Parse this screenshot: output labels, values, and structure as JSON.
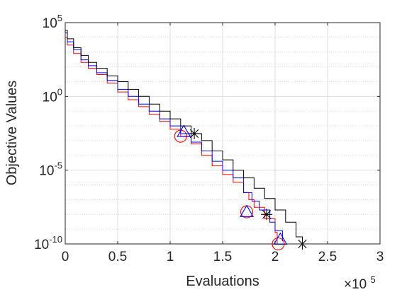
{
  "chart_data": {
    "type": "line",
    "title": "",
    "xlabel": "Evaluations",
    "ylabel": "Objective Values",
    "x_scale_note": {
      "base": "×10",
      "exponent": "5"
    },
    "xlim": [
      0,
      300000
    ],
    "ylim": [
      1e-10,
      100000
    ],
    "yscale": "log",
    "grid": true,
    "minor_grid": true,
    "x_ticks": [
      0,
      50000,
      100000,
      150000,
      200000,
      250000,
      300000
    ],
    "x_tick_labels": [
      "0",
      "0.5",
      "1",
      "1.5",
      "2",
      "2.5",
      "3"
    ],
    "y_ticks": [
      {
        "value": 1e-10,
        "base": "10",
        "exp": "-10"
      },
      {
        "value": 1e-05,
        "base": "10",
        "exp": "-5"
      },
      {
        "value": 1,
        "base": "10",
        "exp": "0"
      },
      {
        "value": 100000,
        "base": "10",
        "exp": "5"
      }
    ],
    "series": [
      {
        "color": "#ff0000",
        "marker": "circle",
        "x": [
          0,
          2000,
          8000,
          15000,
          22000,
          30000,
          40000,
          50000,
          60000,
          70000,
          80000,
          90000,
          100000,
          110000,
          120000,
          130000,
          140000,
          150000,
          160000,
          170000,
          175000,
          180000,
          190000,
          200000,
          202000
        ],
        "y": [
          10000,
          3000,
          800,
          200,
          80,
          30,
          8,
          2,
          0.6,
          0.2,
          0.06,
          0.02,
          0.006,
          0.002,
          0.0006,
          0.0001,
          2e-05,
          5e-06,
          1.5e-06,
          3e-07,
          1e-07,
          3e-08,
          5e-09,
          6e-10,
          1e-10
        ],
        "markers": [
          [
            110000,
            0.002
          ],
          [
            173000,
            1.5e-08
          ],
          [
            203000,
            1e-10
          ]
        ]
      },
      {
        "color": "#0000ff",
        "marker": "triangle",
        "x": [
          0,
          2000,
          8000,
          15000,
          22000,
          30000,
          40000,
          50000,
          60000,
          70000,
          80000,
          90000,
          100000,
          110000,
          120000,
          130000,
          140000,
          150000,
          160000,
          170000,
          178000,
          185000,
          195000,
          200000,
          207000
        ],
        "y": [
          20000,
          5000,
          1500,
          300,
          120,
          40,
          12,
          3,
          1,
          0.3,
          0.1,
          0.03,
          0.01,
          0.003,
          0.0008,
          0.0002,
          4e-05,
          1e-05,
          3e-06,
          3e-07,
          8e-08,
          2e-08,
          3e-09,
          8e-10,
          1.5e-10
        ],
        "markers": [
          [
            113000,
            0.004
          ],
          [
            173000,
            1.5e-08
          ],
          [
            205000,
            2e-10
          ]
        ]
      },
      {
        "color": "#000000",
        "marker": "asterisk",
        "x": [
          0,
          2000,
          8000,
          15000,
          22000,
          30000,
          40000,
          50000,
          60000,
          70000,
          80000,
          90000,
          100000,
          110000,
          120000,
          130000,
          140000,
          150000,
          160000,
          170000,
          180000,
          190000,
          200000,
          210000,
          220000,
          226000
        ],
        "y": [
          30000,
          8000,
          2000,
          600,
          200,
          80,
          25,
          10,
          3,
          1,
          0.3,
          0.1,
          0.03,
          0.01,
          0.003,
          0.001,
          0.0002,
          5e-05,
          1e-05,
          3e-06,
          6e-07,
          1.2e-07,
          2e-08,
          3e-09,
          3e-10,
          1e-10
        ],
        "markers": [
          [
            123000,
            0.003
          ],
          [
            192000,
            1e-08
          ],
          [
            226000,
            1e-10
          ]
        ]
      }
    ]
  }
}
